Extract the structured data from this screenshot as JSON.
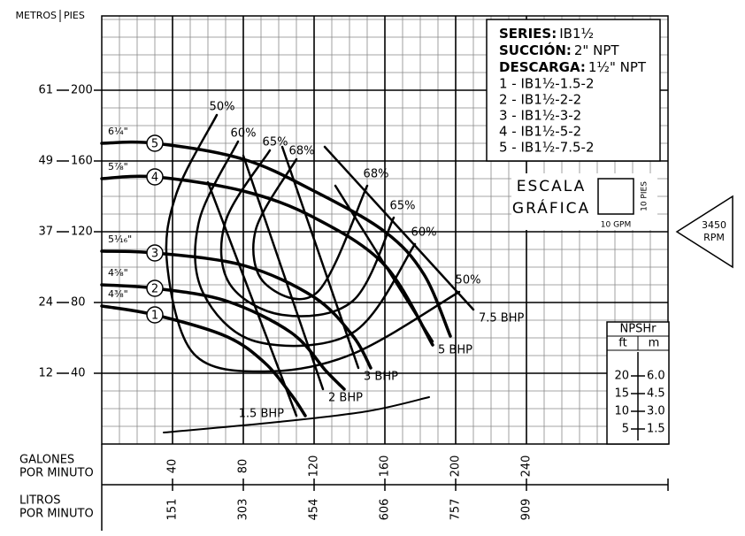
{
  "chart_data": {
    "type": "line",
    "x_label": [
      "GALONES",
      "POR MINUTO"
    ],
    "x2_label": [
      "LITROS",
      "POR MINUTO"
    ],
    "y_label": "PIES",
    "y2_label": "METROS",
    "xlim": [
      0,
      320
    ],
    "ylim": [
      0,
      242
    ],
    "xticks": [
      40,
      80,
      120,
      160,
      200,
      240
    ],
    "x2ticks": [
      {
        "value": 40,
        "label": "151"
      },
      {
        "value": 80,
        "label": "303"
      },
      {
        "value": 120,
        "label": "454"
      },
      {
        "value": 160,
        "label": "606"
      },
      {
        "value": 200,
        "label": "757"
      },
      {
        "value": 240,
        "label": "909"
      }
    ],
    "yticks": [
      40,
      80,
      120,
      160,
      200
    ],
    "y2ticks": [
      {
        "value": 40,
        "label": "12"
      },
      {
        "value": 80,
        "label": "24"
      },
      {
        "value": 120,
        "label": "37"
      },
      {
        "value": 160,
        "label": "49"
      },
      {
        "value": 200,
        "label": "61"
      }
    ],
    "grid": true,
    "series": [
      {
        "name": "1",
        "diameter": "4³⁄₈\"",
        "color": "#000000",
        "x": [
          0,
          30,
          70,
          92,
          107,
          115
        ],
        "values": [
          78,
          73,
          61,
          46,
          28,
          16
        ]
      },
      {
        "name": "2",
        "diameter": "4⁵⁄₈\"",
        "color": "#000000",
        "x": [
          0,
          30,
          70,
          107,
          127,
          137
        ],
        "values": [
          90,
          88,
          81,
          63,
          41,
          31
        ]
      },
      {
        "name": "3",
        "diameter": "5¹⁄₁₆\"",
        "color": "#000000",
        "x": [
          0,
          30,
          80,
          120,
          142,
          152
        ],
        "values": [
          109,
          108,
          101,
          83,
          61,
          43
        ]
      },
      {
        "name": "4",
        "diameter": "5⁷⁄₈\"",
        "color": "#000000",
        "x": [
          0,
          30,
          80,
          120,
          160,
          187
        ],
        "values": [
          150,
          151,
          143,
          128,
          101,
          56
        ]
      },
      {
        "name": "5",
        "diameter": "6¹⁄₄\"",
        "color": "#000000",
        "x": [
          0,
          30,
          80,
          120,
          160,
          182,
          197
        ],
        "values": [
          170,
          170,
          161,
          143,
          120,
          96,
          61
        ]
      }
    ],
    "efficiency": [
      {
        "name": "50%",
        "x": [
          65,
          42,
          37,
          52,
          92,
          142,
          202
        ],
        "values": [
          186,
          141,
          101,
          51,
          41,
          51,
          86
        ]
      },
      {
        "name": "60%",
        "x": [
          77,
          55,
          57,
          87,
          142,
          177
        ],
        "values": [
          171,
          126,
          86,
          58,
          63,
          113
        ]
      },
      {
        "name": "65%",
        "x": [
          95,
          70,
          72,
          102,
          142,
          165
        ],
        "values": [
          166,
          126,
          91,
          73,
          81,
          128
        ]
      },
      {
        "name": "68%",
        "x": [
          110,
          87,
          92,
          122,
          150
        ],
        "values": [
          161,
          121,
          91,
          86,
          146
        ]
      }
    ],
    "bhp": [
      {
        "name": "1.5 BHP",
        "x": [
          60,
          110
        ],
        "values": [
          148,
          16
        ]
      },
      {
        "name": "2 BHP",
        "x": [
          80,
          125
        ],
        "values": [
          163,
          31
        ]
      },
      {
        "name": "3 BHP",
        "x": [
          102,
          145
        ],
        "values": [
          168,
          43
        ]
      },
      {
        "name": "5 BHP",
        "x": [
          132,
          187
        ],
        "values": [
          146,
          58
        ]
      },
      {
        "name": "7.5 BHP",
        "x": [
          126,
          210
        ],
        "values": [
          168,
          76
        ]
      }
    ],
    "npsh": {
      "title": "NPSHr",
      "ft_label": "ft",
      "m_label": "m",
      "ylim": [
        0,
        30
      ],
      "yticks": [
        20,
        15,
        10,
        5
      ],
      "y2ticks": [
        {
          "value": 20,
          "label": "6.0"
        },
        {
          "value": 15,
          "label": "4.5"
        },
        {
          "value": 10,
          "label": "3.0"
        },
        {
          "value": 5,
          "label": "1.5"
        }
      ],
      "x": [
        35,
        100,
        150,
        185
      ],
      "values": [
        4,
        7,
        10,
        14
      ]
    },
    "info": [
      {
        "label": "SERIES:",
        "value": "IB1½"
      },
      {
        "label": "SUCCIÓN:",
        "value": "2\" NPT"
      },
      {
        "label": "DESCARGA:",
        "value": "1½\" NPT"
      }
    ],
    "models": [
      "1 - IB1½-1.5-2",
      "2 - IB1½-2-2",
      "3 - IB1½-3-2",
      "4 - IB1½-5-2",
      "5 - IB1½-7.5-2"
    ],
    "scale": {
      "title": [
        "ESCALA",
        "GRÁFICA"
      ],
      "height_label": "10 PIES",
      "width_label": "10 GPM"
    },
    "rpm": {
      "value": "3450",
      "unit": "RPM"
    }
  }
}
